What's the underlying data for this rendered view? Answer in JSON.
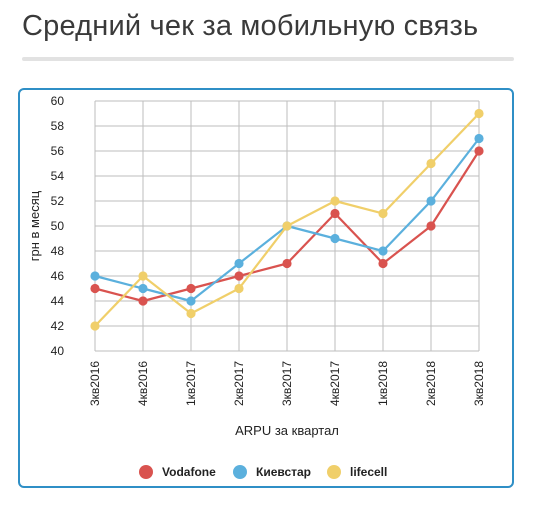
{
  "header": {
    "title": "Средний чек за мобильную связь"
  },
  "chart_data": {
    "type": "line",
    "title": "",
    "xlabel": "ARPU за квартал",
    "ylabel": "грн в месяц",
    "ylim": [
      40,
      60
    ],
    "yticks": [
      40,
      42,
      44,
      46,
      48,
      50,
      52,
      54,
      56,
      58,
      60
    ],
    "grid": true,
    "legend": "bottom-center",
    "categories": [
      "3кв2016",
      "4кв2016",
      "1кв2017",
      "2кв2017",
      "3кв2017",
      "4кв2017",
      "1кв2018",
      "2кв2018",
      "3кв2018"
    ],
    "series": [
      {
        "name": "Vodafone",
        "color": "#d9534f",
        "values": [
          45,
          44,
          45,
          46,
          47,
          51,
          47,
          50,
          56
        ]
      },
      {
        "name": "Киевстар",
        "color": "#5bb0dd",
        "values": [
          46,
          45,
          44,
          47,
          50,
          49,
          48,
          52,
          57
        ]
      },
      {
        "name": "lifecell",
        "color": "#f0cf6a",
        "values": [
          42,
          46,
          43,
          45,
          50,
          52,
          51,
          55,
          59
        ]
      }
    ]
  }
}
